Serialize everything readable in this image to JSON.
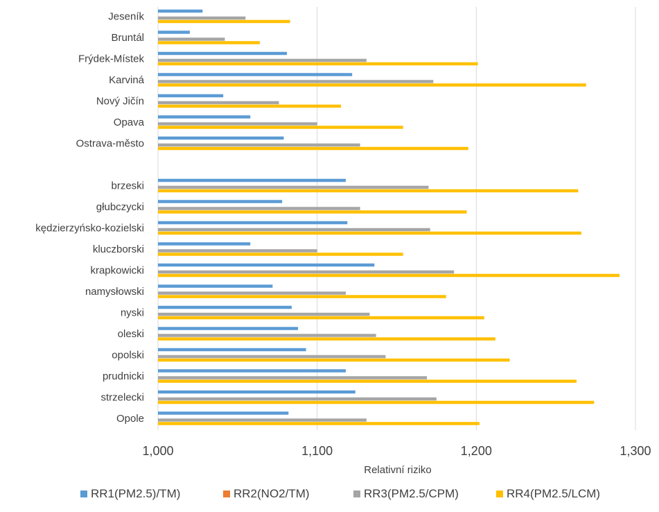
{
  "chart_data": {
    "type": "bar",
    "orientation": "horizontal",
    "categories": [
      "Jeseník",
      "Bruntál",
      "Frýdek-Místek",
      "Karviná",
      "Nový Jičín",
      "Opava",
      "Ostrava-město",
      "",
      "brzeski",
      "głubczycki",
      "kędzierzyńsko-kozielski",
      "kluczborski",
      "krapkowicki",
      "namysłowski",
      "nyski",
      "oleski",
      "opolski",
      "prudnicki",
      "strzelecki",
      "Opole"
    ],
    "series": [
      {
        "name": "RR1(PM2.5)/TM)",
        "color": "#5b9bd5",
        "values": [
          1.028,
          1.02,
          1.081,
          1.122,
          1.041,
          1.058,
          1.079,
          null,
          1.118,
          1.078,
          1.119,
          1.058,
          1.136,
          1.072,
          1.084,
          1.088,
          1.093,
          1.118,
          1.124,
          1.082
        ]
      },
      {
        "name": "RR2(NO2/TM)",
        "color": "#ed7d31",
        "values": [
          null,
          null,
          null,
          null,
          null,
          null,
          null,
          null,
          null,
          null,
          null,
          null,
          null,
          null,
          null,
          null,
          null,
          null,
          null,
          null
        ]
      },
      {
        "name": "RR3(PM2.5/CPM)",
        "color": "#a5a5a5",
        "values": [
          1.055,
          1.042,
          1.131,
          1.173,
          1.076,
          1.1,
          1.127,
          null,
          1.17,
          1.127,
          1.171,
          1.1,
          1.186,
          1.118,
          1.133,
          1.137,
          1.143,
          1.169,
          1.175,
          1.131
        ]
      },
      {
        "name": "RR4(PM2.5/LCM)",
        "color": "#ffc000",
        "values": [
          1.083,
          1.064,
          1.201,
          1.269,
          1.115,
          1.154,
          1.195,
          null,
          1.264,
          1.194,
          1.266,
          1.154,
          1.29,
          1.181,
          1.205,
          1.212,
          1.221,
          1.263,
          1.274,
          1.202
        ]
      }
    ],
    "xlim": [
      1.0,
      1.3
    ],
    "x_ticks": [
      "1,000",
      "1,100",
      "1,200",
      "1,300"
    ],
    "x_tick_values": [
      1.0,
      1.1,
      1.2,
      1.3
    ],
    "xlabel": "Relativní riziko",
    "grid": "vertical",
    "legend": "bottom"
  }
}
